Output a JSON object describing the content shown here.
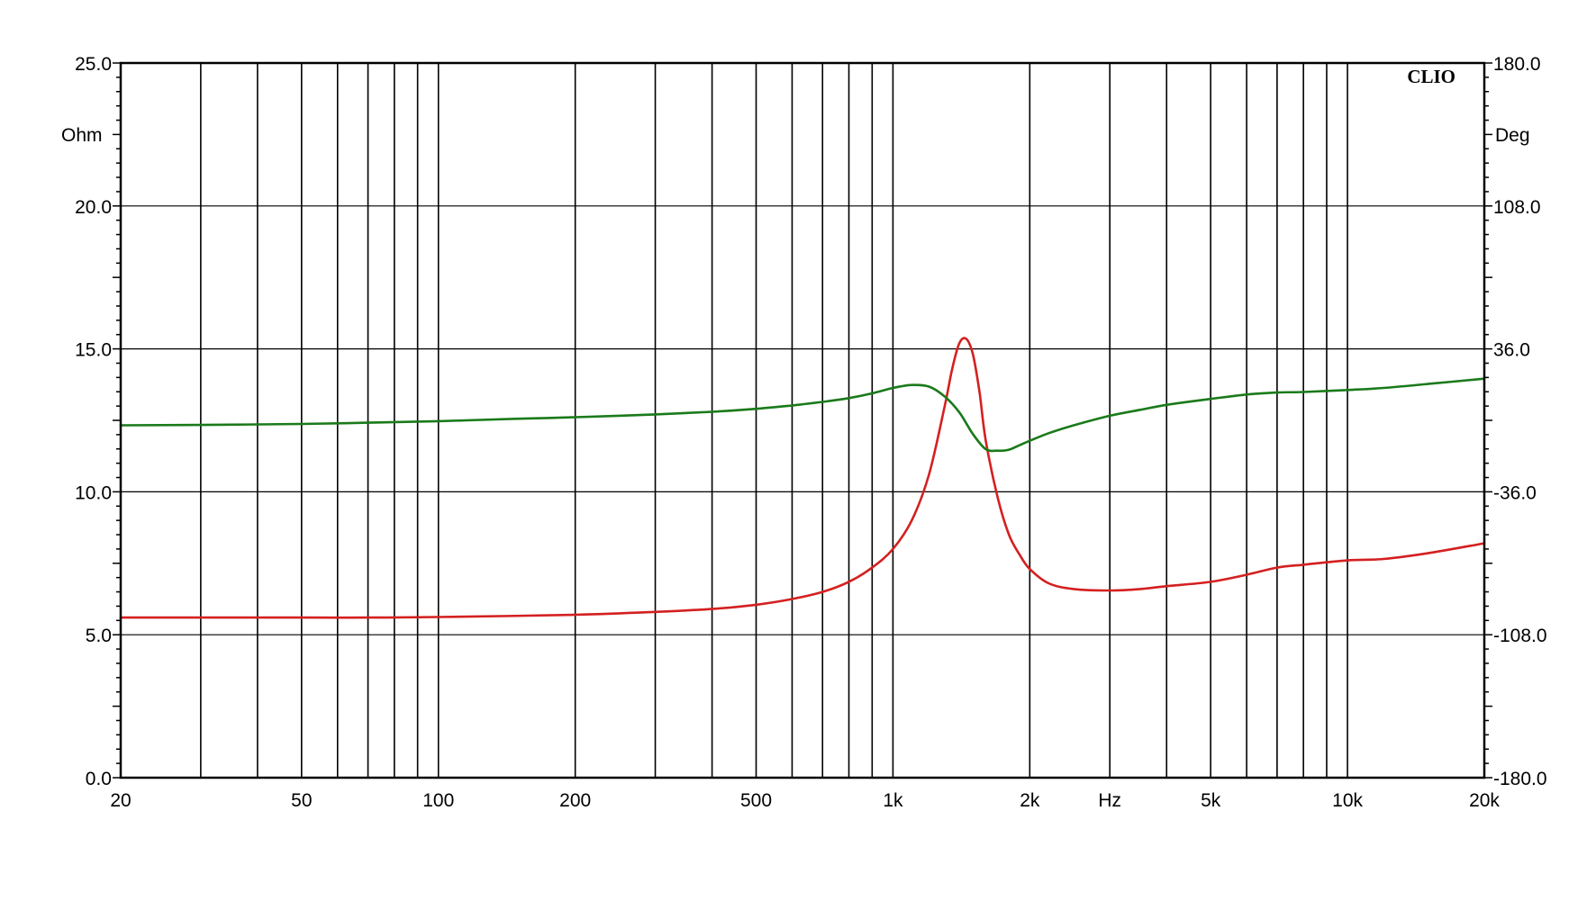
{
  "brand": "CLIO",
  "chart_data": {
    "type": "line",
    "title": "",
    "x_scale": "log",
    "x_unit_label": "Hz",
    "xlim": [
      20,
      20000
    ],
    "x_tick_values": [
      20,
      50,
      100,
      200,
      500,
      1000,
      2000,
      5000,
      10000,
      20000
    ],
    "x_tick_labels": [
      "20",
      "50",
      "100",
      "200",
      "500",
      "1k",
      "2k",
      "5k",
      "10k",
      "20k"
    ],
    "hz_label_position": 3000,
    "y_left": {
      "unit_label": "Ohm",
      "lim": [
        0,
        25
      ],
      "ticks": [
        0,
        5,
        10,
        15,
        20,
        25
      ],
      "tick_labels": [
        "0.0",
        "5.0",
        "10.0",
        "15.0",
        "20.0",
        "25.0"
      ]
    },
    "y_right": {
      "unit_label": "Deg",
      "lim": [
        -180,
        180
      ],
      "ticks": [
        -180,
        -108,
        -36,
        36,
        108,
        180
      ],
      "tick_labels": [
        "-180.0",
        "-108.0",
        "-36.0",
        "36.0",
        "108.0",
        "180.0"
      ]
    },
    "grid": true,
    "series": [
      {
        "axis": "left",
        "color": "#d42020",
        "x": [
          20,
          30,
          50,
          70,
          100,
          200,
          300,
          400,
          500,
          600,
          700,
          800,
          900,
          1000,
          1100,
          1200,
          1300,
          1350,
          1400,
          1450,
          1500,
          1550,
          1600,
          1700,
          1800,
          1900,
          2000,
          2200,
          2500,
          3000,
          3500,
          4000,
          5000,
          6000,
          7000,
          8000,
          10000,
          12000,
          15000,
          20000
        ],
        "values": [
          5.6,
          5.6,
          5.6,
          5.6,
          5.62,
          5.7,
          5.8,
          5.9,
          6.05,
          6.25,
          6.5,
          6.85,
          7.35,
          8.0,
          9.0,
          10.6,
          13.0,
          14.3,
          15.2,
          15.35,
          14.8,
          13.5,
          11.8,
          9.8,
          8.5,
          7.8,
          7.3,
          6.8,
          6.6,
          6.55,
          6.6,
          6.7,
          6.85,
          7.1,
          7.35,
          7.45,
          7.6,
          7.65,
          7.85,
          8.2
        ]
      },
      {
        "axis": "right",
        "color": "#1a7a1a",
        "x": [
          20,
          30,
          50,
          70,
          100,
          150,
          200,
          300,
          400,
          500,
          600,
          700,
          800,
          900,
          1000,
          1100,
          1200,
          1300,
          1400,
          1500,
          1600,
          1700,
          1800,
          1900,
          2000,
          2200,
          2500,
          3000,
          3500,
          4000,
          5000,
          6000,
          7000,
          8000,
          10000,
          12000,
          15000,
          20000
        ],
        "values": [
          -2.5,
          -2.3,
          -1.8,
          -1.2,
          -0.4,
          0.8,
          1.6,
          3.0,
          4.3,
          5.8,
          7.5,
          9.3,
          11.2,
          13.6,
          16.3,
          17.8,
          17.0,
          12.0,
          4.0,
          -7.0,
          -14.5,
          -15.3,
          -14.8,
          -12.5,
          -10.3,
          -6.5,
          -2.5,
          2.3,
          5.3,
          7.8,
          10.8,
          13.0,
          14.0,
          14.3,
          15.3,
          16.3,
          18.3,
          21.0
        ]
      }
    ]
  }
}
